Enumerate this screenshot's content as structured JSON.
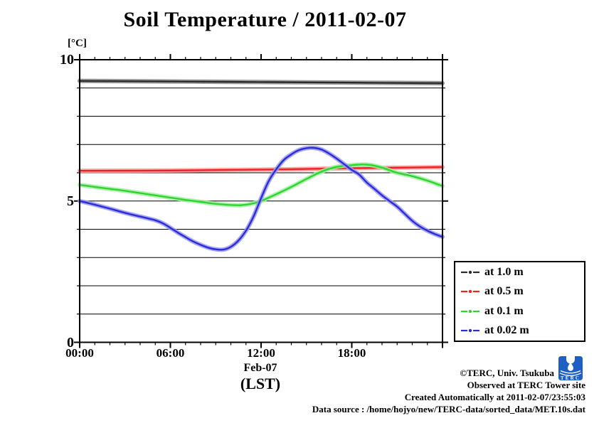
{
  "chart_data": {
    "type": "line",
    "title": "Soil Temperature / 2011-02-07",
    "unit_label": "[°C]",
    "xlabel_line1": "Feb-07",
    "xlabel_line2": "(LST)",
    "x_axis": {
      "min_hour": 0,
      "max_hour": 24,
      "major_tick_every_hours": 6,
      "minor_tick_every_hours": 1
    },
    "y_axis": {
      "min": 0,
      "max": 10,
      "grid_every": 1,
      "labeled_ticks": [
        0,
        5,
        10
      ]
    },
    "x_ticks_major": [
      {
        "hour": 0,
        "label": "00:00"
      },
      {
        "hour": 6,
        "label": "06:00"
      },
      {
        "hour": 12,
        "label": "12:00"
      },
      {
        "hour": 18,
        "label": "18:00"
      }
    ],
    "grid": "horizontal-only",
    "legend_position": "outside-right-bottom",
    "series": [
      {
        "name": "at 1.0 m",
        "color": "#2b2b2b",
        "halo": "#8a8a8a",
        "points": [
          [
            0,
            9.25
          ],
          [
            6,
            9.23
          ],
          [
            12,
            9.21
          ],
          [
            18,
            9.19
          ],
          [
            24,
            9.17
          ]
        ]
      },
      {
        "name": "at 0.5 m",
        "color": "#ee2020",
        "halo": "#ff9a9a",
        "points": [
          [
            0,
            6.07
          ],
          [
            6,
            6.08
          ],
          [
            12,
            6.11
          ],
          [
            18,
            6.16
          ],
          [
            21,
            6.18
          ],
          [
            24,
            6.2
          ]
        ]
      },
      {
        "name": "at 0.1 m",
        "color": "#2fd42f",
        "halo": "#a2f0a2",
        "points": [
          [
            0,
            5.57
          ],
          [
            1,
            5.5
          ],
          [
            2,
            5.43
          ],
          [
            3,
            5.36
          ],
          [
            4,
            5.28
          ],
          [
            5,
            5.2
          ],
          [
            6,
            5.12
          ],
          [
            7,
            5.04
          ],
          [
            8,
            4.97
          ],
          [
            9,
            4.9
          ],
          [
            10,
            4.86
          ],
          [
            10.5,
            4.85
          ],
          [
            11,
            4.87
          ],
          [
            11.5,
            4.92
          ],
          [
            12,
            5.0
          ],
          [
            13,
            5.24
          ],
          [
            14,
            5.5
          ],
          [
            15,
            5.78
          ],
          [
            16,
            6.04
          ],
          [
            17,
            6.21
          ],
          [
            18,
            6.27
          ],
          [
            18.5,
            6.29
          ],
          [
            19,
            6.29
          ],
          [
            19.5,
            6.25
          ],
          [
            20,
            6.18
          ],
          [
            21,
            6.0
          ],
          [
            22,
            5.88
          ],
          [
            23,
            5.72
          ],
          [
            24,
            5.53
          ]
        ]
      },
      {
        "name": "at 0.02 m",
        "color": "#2c2cd8",
        "halo": "#9a9af0",
        "points": [
          [
            0,
            5.0
          ],
          [
            1,
            4.87
          ],
          [
            2,
            4.73
          ],
          [
            3,
            4.58
          ],
          [
            4,
            4.45
          ],
          [
            5,
            4.32
          ],
          [
            5.5,
            4.21
          ],
          [
            6,
            4.05
          ],
          [
            6.5,
            3.88
          ],
          [
            7,
            3.72
          ],
          [
            7.5,
            3.57
          ],
          [
            8,
            3.45
          ],
          [
            8.5,
            3.35
          ],
          [
            9,
            3.29
          ],
          [
            9.5,
            3.28
          ],
          [
            10,
            3.38
          ],
          [
            10.5,
            3.6
          ],
          [
            11,
            3.95
          ],
          [
            11.5,
            4.45
          ],
          [
            12,
            5.1
          ],
          [
            12.5,
            5.7
          ],
          [
            13,
            6.12
          ],
          [
            13.5,
            6.45
          ],
          [
            14,
            6.65
          ],
          [
            14.5,
            6.8
          ],
          [
            15,
            6.87
          ],
          [
            15.5,
            6.88
          ],
          [
            16,
            6.82
          ],
          [
            16.5,
            6.68
          ],
          [
            17,
            6.5
          ],
          [
            17.5,
            6.3
          ],
          [
            18,
            6.1
          ],
          [
            18.5,
            5.93
          ],
          [
            19,
            5.65
          ],
          [
            19.5,
            5.43
          ],
          [
            20,
            5.2
          ],
          [
            20.5,
            5.0
          ],
          [
            21,
            4.8
          ],
          [
            21.5,
            4.55
          ],
          [
            22,
            4.3
          ],
          [
            22.5,
            4.1
          ],
          [
            23,
            3.95
          ],
          [
            23.5,
            3.83
          ],
          [
            24,
            3.73
          ]
        ]
      }
    ]
  },
  "footer": {
    "line1": "©TERC, Univ. Tsukuba",
    "line2": "Observed at TERC Tower site",
    "line3": "Created Automatically at 2011-02-07/23:55:03",
    "line4": "Data source : /home/hojyo/new/TERC-data/sorted_data/MET.10s.dat"
  },
  "logo": {
    "text": "TERC",
    "color": "#1f5fc4"
  }
}
